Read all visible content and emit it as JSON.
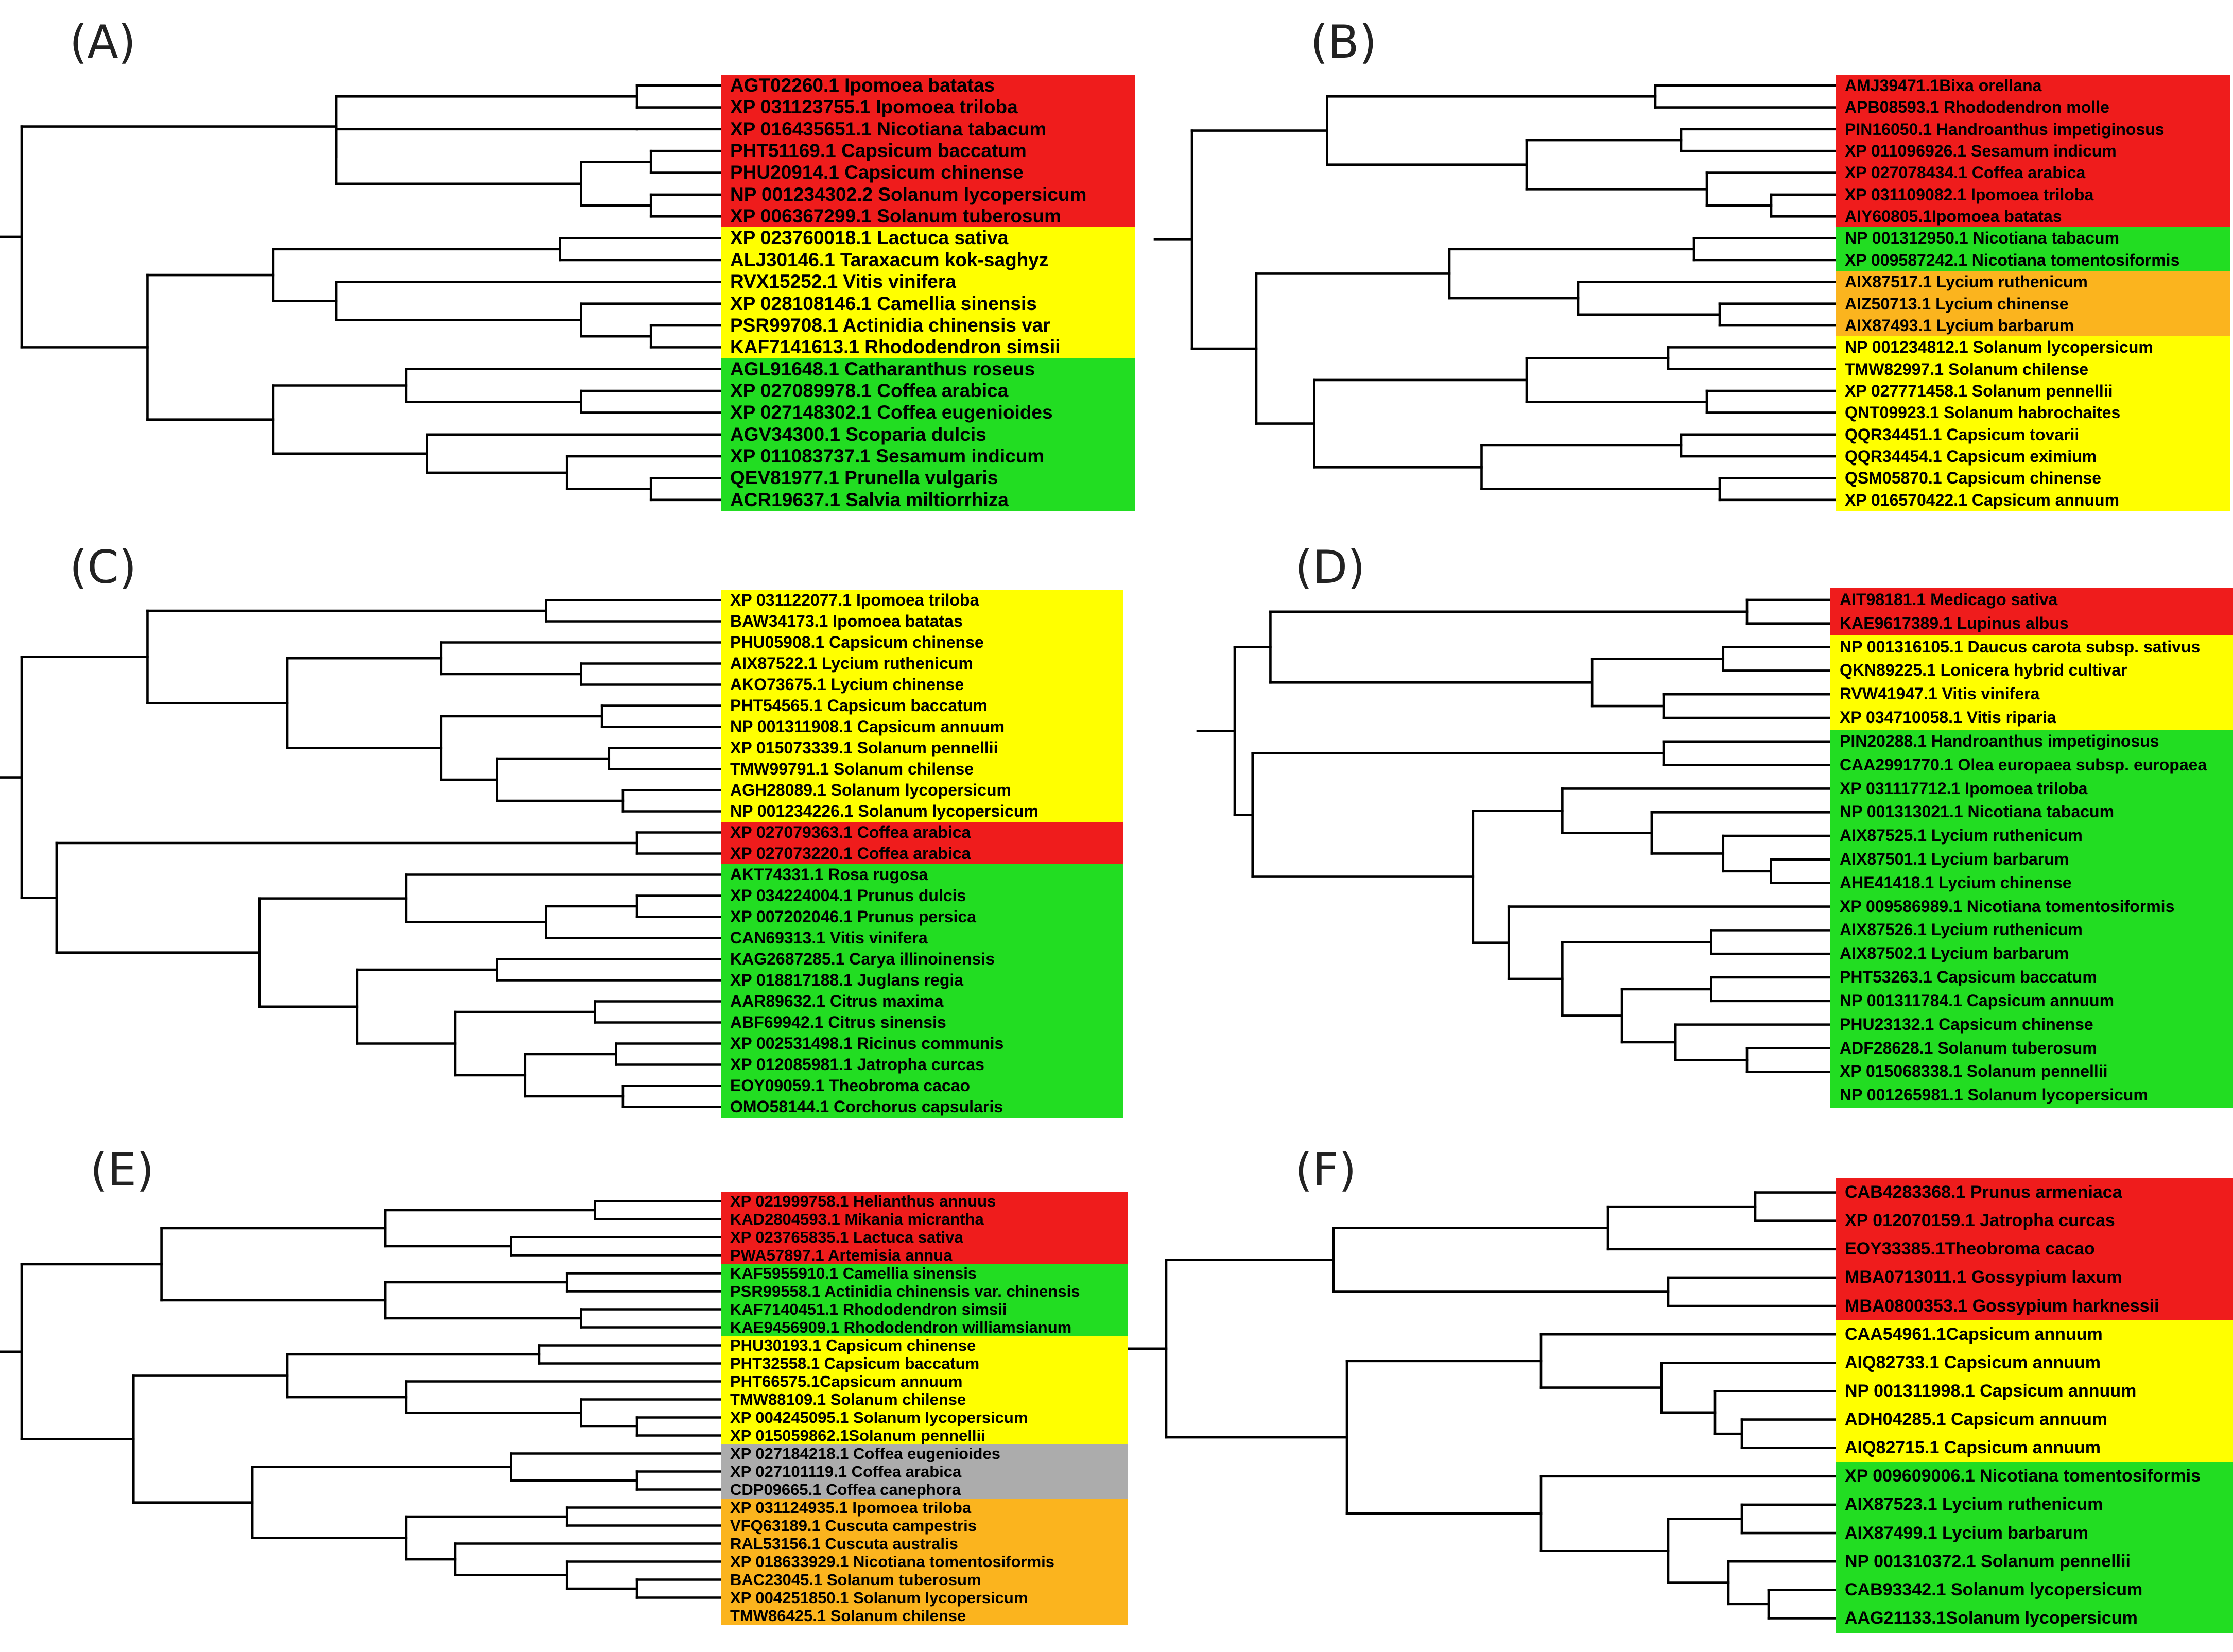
{
  "colors": {
    "red": "#ef1c1c",
    "yellow": "#ffff00",
    "green": "#22dd22",
    "orange": "#fbb41e",
    "gray": "#acacac"
  },
  "panels": {
    "A": {
      "label": "(A)",
      "groups": [
        {
          "color": "red",
          "leaves": [
            "AGT02260.1 Ipomoea batatas",
            "XP 031123755.1 Ipomoea triloba",
            "XP 016435651.1 Nicotiana tabacum",
            "PHT51169.1 Capsicum baccatum",
            "PHU20914.1 Capsicum chinense",
            "NP 001234302.2 Solanum lycopersicum",
            "XP 006367299.1 Solanum tuberosum"
          ]
        },
        {
          "color": "yellow",
          "leaves": [
            "XP 023760018.1 Lactuca sativa",
            "ALJ30146.1 Taraxacum kok-saghyz",
            "RVX15252.1 Vitis vinifera",
            "XP 028108146.1 Camellia sinensis",
            "PSR99708.1 Actinidia chinensis var",
            "KAF7141613.1 Rhododendron simsii"
          ]
        },
        {
          "color": "green",
          "leaves": [
            "AGL91648.1 Catharanthus roseus",
            "XP 027089978.1 Coffea arabica",
            "XP 027148302.1 Coffea eugenioides",
            "AGV34300.1 Scoparia dulcis",
            "XP 011083737.1 Sesamum indicum",
            "QEV81977.1 Prunella vulgaris",
            "ACR19637.1 Salvia miltiorrhiza"
          ]
        }
      ]
    },
    "B": {
      "label": "(B)",
      "groups": [
        {
          "color": "red",
          "leaves": [
            "AMJ39471.1Bixa orellana",
            "APB08593.1 Rhododendron molle",
            "PIN16050.1 Handroanthus impetiginosus",
            "XP 011096926.1 Sesamum indicum",
            "XP 027078434.1 Coffea arabica",
            "XP 031109082.1 Ipomoea triloba",
            "AIY60805.1Ipomoea batatas"
          ]
        },
        {
          "color": "green",
          "leaves": [
            "NP 001312950.1 Nicotiana tabacum",
            "XP 009587242.1 Nicotiana tomentosiformis"
          ]
        },
        {
          "color": "orange",
          "leaves": [
            "AIX87517.1 Lycium ruthenicum",
            "AIZ50713.1 Lycium chinense",
            "AIX87493.1 Lycium barbarum"
          ]
        },
        {
          "color": "yellow",
          "leaves": [
            "NP 001234812.1 Solanum lycopersicum",
            "TMW82997.1 Solanum chilense",
            "XP 027771458.1 Solanum pennellii",
            "QNT09923.1 Solanum habrochaites",
            "QQR34451.1 Capsicum tovarii",
            "QQR34454.1 Capsicum eximium",
            "QSM05870.1 Capsicum chinense",
            "XP 016570422.1 Capsicum annuum"
          ]
        }
      ]
    },
    "C": {
      "label": "(C)",
      "groups": [
        {
          "color": "yellow",
          "leaves": [
            "XP 031122077.1 Ipomoea triloba",
            "BAW34173.1 Ipomoea batatas",
            "PHU05908.1 Capsicum chinense",
            "AIX87522.1 Lycium ruthenicum",
            "AKO73675.1 Lycium chinense",
            "PHT54565.1 Capsicum baccatum",
            "NP 001311908.1 Capsicum annuum",
            "XP 015073339.1 Solanum pennellii",
            "TMW99791.1 Solanum chilense",
            "AGH28089.1 Solanum lycopersicum",
            "NP 001234226.1 Solanum lycopersicum"
          ]
        },
        {
          "color": "red",
          "leaves": [
            "XP 027079363.1 Coffea arabica",
            "XP 027073220.1 Coffea arabica"
          ]
        },
        {
          "color": "green",
          "leaves": [
            "AKT74331.1 Rosa rugosa",
            "XP 034224004.1 Prunus dulcis",
            "XP 007202046.1 Prunus persica",
            "CAN69313.1 Vitis vinifera",
            "KAG2687285.1 Carya illinoinensis",
            "XP 018817188.1 Juglans regia",
            "AAR89632.1 Citrus maxima",
            "ABF69942.1 Citrus sinensis",
            "XP 002531498.1 Ricinus communis",
            "XP 012085981.1 Jatropha curcas",
            "EOY09059.1 Theobroma cacao",
            "OMO58144.1 Corchorus capsularis"
          ]
        }
      ]
    },
    "D": {
      "label": "(D)",
      "groups": [
        {
          "color": "red",
          "leaves": [
            "AIT98181.1 Medicago sativa",
            "KAE9617389.1 Lupinus albus"
          ]
        },
        {
          "color": "yellow",
          "leaves": [
            "NP 001316105.1 Daucus carota subsp. sativus",
            "QKN89225.1 Lonicera hybrid cultivar",
            "RVW41947.1 Vitis vinifera",
            "XP 034710058.1 Vitis riparia"
          ]
        },
        {
          "color": "green",
          "leaves": [
            "PIN20288.1 Handroanthus impetiginosus",
            "CAA2991770.1 Olea europaea subsp. europaea",
            "XP 031117712.1 Ipomoea triloba",
            "NP 001313021.1 Nicotiana tabacum",
            "AIX87525.1 Lycium ruthenicum",
            "AIX87501.1 Lycium barbarum",
            "AHE41418.1 Lycium chinense",
            "XP 009586989.1 Nicotiana tomentosiformis",
            "AIX87526.1 Lycium ruthenicum",
            "AIX87502.1 Lycium barbarum",
            "PHT53263.1 Capsicum baccatum",
            "NP 001311784.1 Capsicum annuum",
            "PHU23132.1 Capsicum chinense",
            "ADF28628.1 Solanum tuberosum",
            "XP 015068338.1 Solanum pennellii",
            "NP 001265981.1 Solanum lycopersicum"
          ]
        }
      ]
    },
    "E": {
      "label": "(E)",
      "groups": [
        {
          "color": "red",
          "leaves": [
            "XP 021999758.1 Helianthus annuus",
            "KAD2804593.1 Mikania micrantha",
            "XP 023765835.1 Lactuca sativa",
            "PWA57897.1 Artemisia annua"
          ]
        },
        {
          "color": "green",
          "leaves": [
            "KAF5955910.1 Camellia sinensis",
            "PSR99558.1 Actinidia chinensis var. chinensis",
            "KAF7140451.1 Rhododendron simsii",
            "KAE9456909.1 Rhododendron williamsianum"
          ]
        },
        {
          "color": "yellow",
          "leaves": [
            "PHU30193.1 Capsicum chinense",
            "PHT32558.1 Capsicum baccatum",
            "PHT66575.1Capsicum annuum",
            "TMW88109.1 Solanum chilense",
            "XP 004245095.1 Solanum lycopersicum",
            "XP 015059862.1Solanum pennellii"
          ]
        },
        {
          "color": "gray",
          "leaves": [
            "XP 027184218.1 Coffea eugenioides",
            "XP 027101119.1 Coffea arabica",
            "CDP09665.1 Coffea canephora"
          ]
        },
        {
          "color": "orange",
          "leaves": [
            "XP 031124935.1 Ipomoea triloba",
            "VFQ63189.1 Cuscuta campestris",
            "RAL53156.1 Cuscuta australis",
            "XP 018633929.1 Nicotiana tomentosiformis",
            "BAC23045.1 Solanum tuberosum",
            "XP 004251850.1 Solanum lycopersicum",
            "TMW86425.1 Solanum chilense"
          ]
        }
      ]
    },
    "F": {
      "label": "(F)",
      "groups": [
        {
          "color": "red",
          "leaves": [
            "CAB4283368.1 Prunus armeniaca",
            "XP 012070159.1 Jatropha curcas",
            "EOY33385.1Theobroma cacao",
            "MBA0713011.1 Gossypium laxum",
            "MBA0800353.1 Gossypium harknessii"
          ]
        },
        {
          "color": "yellow",
          "leaves": [
            "CAA54961.1Capsicum annuum",
            "AIQ82733.1 Capsicum annuum",
            "NP 001311998.1 Capsicum annuum",
            "ADH04285.1 Capsicum annuum",
            "AIQ82715.1 Capsicum annuum"
          ]
        },
        {
          "color": "green",
          "leaves": [
            "XP 009609006.1 Nicotiana tomentosiformis",
            "AIX87523.1 Lycium ruthenicum",
            "AIX87499.1 Lycium barbarum",
            "NP 001310372.1 Solanum pennellii",
            "CAB93342.1 Solanum lycopersicum",
            "AAG21133.1Solanum lycopersicum"
          ]
        }
      ]
    }
  }
}
